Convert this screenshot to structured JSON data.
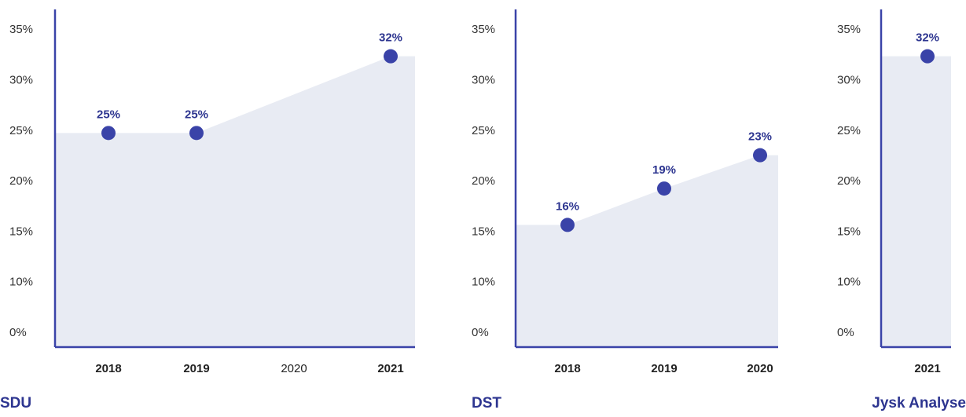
{
  "chart_data": [
    {
      "type": "area",
      "title": "SDU",
      "categories": [
        "2018",
        "2019",
        "2020",
        "2021"
      ],
      "values": [
        24.8,
        24.8,
        null,
        32.4
      ],
      "value_labels": [
        "25%",
        "25%",
        null,
        "32%"
      ],
      "color": "#3a43a8",
      "fill": "#e8ebf3",
      "ylim": [
        0,
        35
      ],
      "yticks": [
        {
          "value": 0,
          "label": "0%"
        },
        {
          "value": 10,
          "label": "10%"
        },
        {
          "value": 15,
          "label": "15%"
        },
        {
          "value": 20,
          "label": "20%"
        },
        {
          "value": 25,
          "label": "25%"
        },
        {
          "value": 30,
          "label": "30%"
        },
        {
          "value": 35,
          "label": "35%"
        }
      ]
    },
    {
      "type": "area",
      "title": "DST",
      "categories": [
        "2018",
        "2019",
        "2020"
      ],
      "values": [
        15.7,
        19.3,
        22.6
      ],
      "value_labels": [
        "16%",
        "19%",
        "23%"
      ],
      "color": "#3a43a8",
      "fill": "#e8ebf3",
      "ylim": [
        0,
        35
      ],
      "yticks": [
        {
          "value": 0,
          "label": "0%"
        },
        {
          "value": 10,
          "label": "10%"
        },
        {
          "value": 15,
          "label": "15%"
        },
        {
          "value": 20,
          "label": "20%"
        },
        {
          "value": 25,
          "label": "25%"
        },
        {
          "value": 30,
          "label": "30%"
        },
        {
          "value": 35,
          "label": "35%"
        }
      ]
    },
    {
      "type": "area",
      "title": "Jysk Analyse",
      "categories": [
        "2021"
      ],
      "values": [
        32.4
      ],
      "value_labels": [
        "32%"
      ],
      "color": "#3a43a8",
      "fill": "#e8ebf3",
      "ylim": [
        0,
        35
      ],
      "yticks": [
        {
          "value": 0,
          "label": "0%"
        },
        {
          "value": 10,
          "label": "10%"
        },
        {
          "value": 15,
          "label": "15%"
        },
        {
          "value": 20,
          "label": "20%"
        },
        {
          "value": 25,
          "label": "25%"
        },
        {
          "value": 30,
          "label": "30%"
        },
        {
          "value": 35,
          "label": "35%"
        }
      ]
    }
  ]
}
